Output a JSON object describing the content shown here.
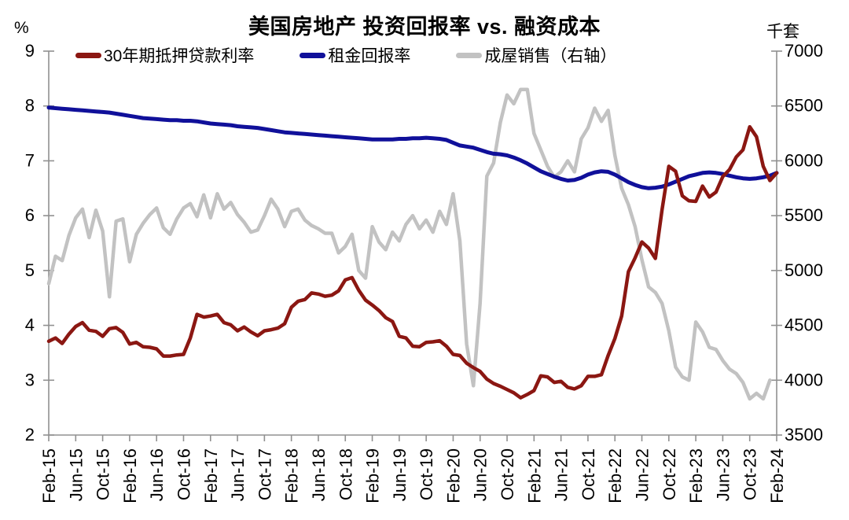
{
  "chart_data": {
    "type": "line",
    "title": "美国房地产 投资回报率 vs. 融资成本",
    "y_left": {
      "unit": "%",
      "min": 2,
      "max": 9,
      "ticks": [
        9,
        8,
        7,
        6,
        5,
        4,
        3,
        2
      ]
    },
    "y_right": {
      "unit": "千套",
      "min": 3500,
      "max": 7000,
      "ticks": [
        7000,
        6500,
        6000,
        5500,
        5000,
        4500,
        4000,
        3500
      ]
    },
    "x_tick_labels": [
      "Feb-15",
      "Jun-15",
      "Oct-15",
      "Feb-16",
      "Jun-16",
      "Oct-16",
      "Feb-17",
      "Jun-17",
      "Oct-17",
      "Feb-18",
      "Jun-18",
      "Oct-18",
      "Feb-19",
      "Jun-19",
      "Oct-19",
      "Feb-20",
      "Jun-20",
      "Oct-20",
      "Feb-21",
      "Jun-21",
      "Oct-21",
      "Feb-22",
      "Jun-22",
      "Oct-22",
      "Feb-23",
      "Jun-23",
      "Oct-23",
      "Feb-24"
    ],
    "x_range_note": "monthly points from Feb-15 to Feb-24",
    "grid": false,
    "legend_position": "top",
    "series": [
      {
        "key": "mortgage-rate-30y",
        "name": "30年期抵押贷款利率",
        "axis": "left",
        "color": "#8B1712",
        "values": [
          3.71,
          3.77,
          3.67,
          3.84,
          3.98,
          4.05,
          3.91,
          3.89,
          3.8,
          3.94,
          3.96,
          3.87,
          3.66,
          3.69,
          3.61,
          3.6,
          3.57,
          3.44,
          3.44,
          3.46,
          3.47,
          3.77,
          4.2,
          4.15,
          4.17,
          4.2,
          4.05,
          4.01,
          3.9,
          3.97,
          3.88,
          3.81,
          3.9,
          3.92,
          3.95,
          4.03,
          4.33,
          4.44,
          4.47,
          4.59,
          4.57,
          4.53,
          4.55,
          4.63,
          4.83,
          4.87,
          4.64,
          4.46,
          4.37,
          4.27,
          4.14,
          4.07,
          3.8,
          3.77,
          3.62,
          3.61,
          3.69,
          3.7,
          3.72,
          3.62,
          3.47,
          3.45,
          3.31,
          3.23,
          3.16,
          3.02,
          2.94,
          2.89,
          2.83,
          2.77,
          2.68,
          2.74,
          2.81,
          3.08,
          3.06,
          2.96,
          2.98,
          2.87,
          2.84,
          2.9,
          3.07,
          3.07,
          3.1,
          3.45,
          3.76,
          4.17,
          4.98,
          5.23,
          5.52,
          5.41,
          5.22,
          6.11,
          6.9,
          6.81,
          6.36,
          6.27,
          6.26,
          6.54,
          6.34,
          6.43,
          6.71,
          6.84,
          7.07,
          7.2,
          7.62,
          7.44,
          6.9,
          6.64,
          6.78
        ]
      },
      {
        "key": "rent-yield",
        "name": "租金回报率",
        "axis": "left",
        "color": "#10109A",
        "values": [
          7.97,
          7.96,
          7.95,
          7.94,
          7.93,
          7.92,
          7.91,
          7.9,
          7.89,
          7.88,
          7.86,
          7.84,
          7.82,
          7.8,
          7.78,
          7.77,
          7.76,
          7.75,
          7.74,
          7.74,
          7.73,
          7.73,
          7.72,
          7.7,
          7.68,
          7.67,
          7.66,
          7.65,
          7.63,
          7.62,
          7.61,
          7.6,
          7.58,
          7.56,
          7.54,
          7.52,
          7.51,
          7.5,
          7.49,
          7.48,
          7.47,
          7.46,
          7.45,
          7.44,
          7.43,
          7.42,
          7.41,
          7.4,
          7.39,
          7.39,
          7.39,
          7.39,
          7.4,
          7.4,
          7.41,
          7.41,
          7.42,
          7.41,
          7.4,
          7.38,
          7.33,
          7.28,
          7.26,
          7.24,
          7.2,
          7.16,
          7.13,
          7.12,
          7.1,
          7.06,
          7.01,
          6.95,
          6.88,
          6.81,
          6.76,
          6.71,
          6.67,
          6.64,
          6.65,
          6.69,
          6.75,
          6.79,
          6.81,
          6.8,
          6.75,
          6.68,
          6.61,
          6.56,
          6.52,
          6.5,
          6.51,
          6.53,
          6.57,
          6.62,
          6.67,
          6.72,
          6.75,
          6.78,
          6.79,
          6.78,
          6.76,
          6.73,
          6.7,
          6.68,
          6.67,
          6.68,
          6.7,
          6.73,
          6.78
        ]
      },
      {
        "key": "existing-home-sales",
        "name": "成屋销售（右轴）",
        "axis": "right",
        "color": "#C2C2C2",
        "values": [
          4880,
          5130,
          5090,
          5320,
          5480,
          5560,
          5300,
          5550,
          5360,
          4760,
          5450,
          5470,
          5080,
          5330,
          5430,
          5510,
          5570,
          5390,
          5330,
          5470,
          5570,
          5610,
          5490,
          5690,
          5480,
          5700,
          5560,
          5620,
          5510,
          5440,
          5350,
          5370,
          5500,
          5650,
          5560,
          5400,
          5540,
          5560,
          5460,
          5410,
          5380,
          5340,
          5340,
          5160,
          5220,
          5330,
          5000,
          4930,
          5400,
          5260,
          5190,
          5350,
          5270,
          5420,
          5500,
          5380,
          5460,
          5350,
          5540,
          5420,
          5700,
          5270,
          4330,
          3950,
          4700,
          5860,
          5980,
          6350,
          6600,
          6520,
          6650,
          6650,
          6250,
          6100,
          5950,
          5850,
          5900,
          6000,
          5900,
          6200,
          6300,
          6480,
          6360,
          6460,
          6050,
          5750,
          5600,
          5400,
          5100,
          4850,
          4800,
          4700,
          4450,
          4120,
          4030,
          4000,
          4530,
          4440,
          4300,
          4280,
          4180,
          4100,
          4060,
          3980,
          3830,
          3880,
          3830,
          4000,
          null
        ]
      }
    ]
  }
}
